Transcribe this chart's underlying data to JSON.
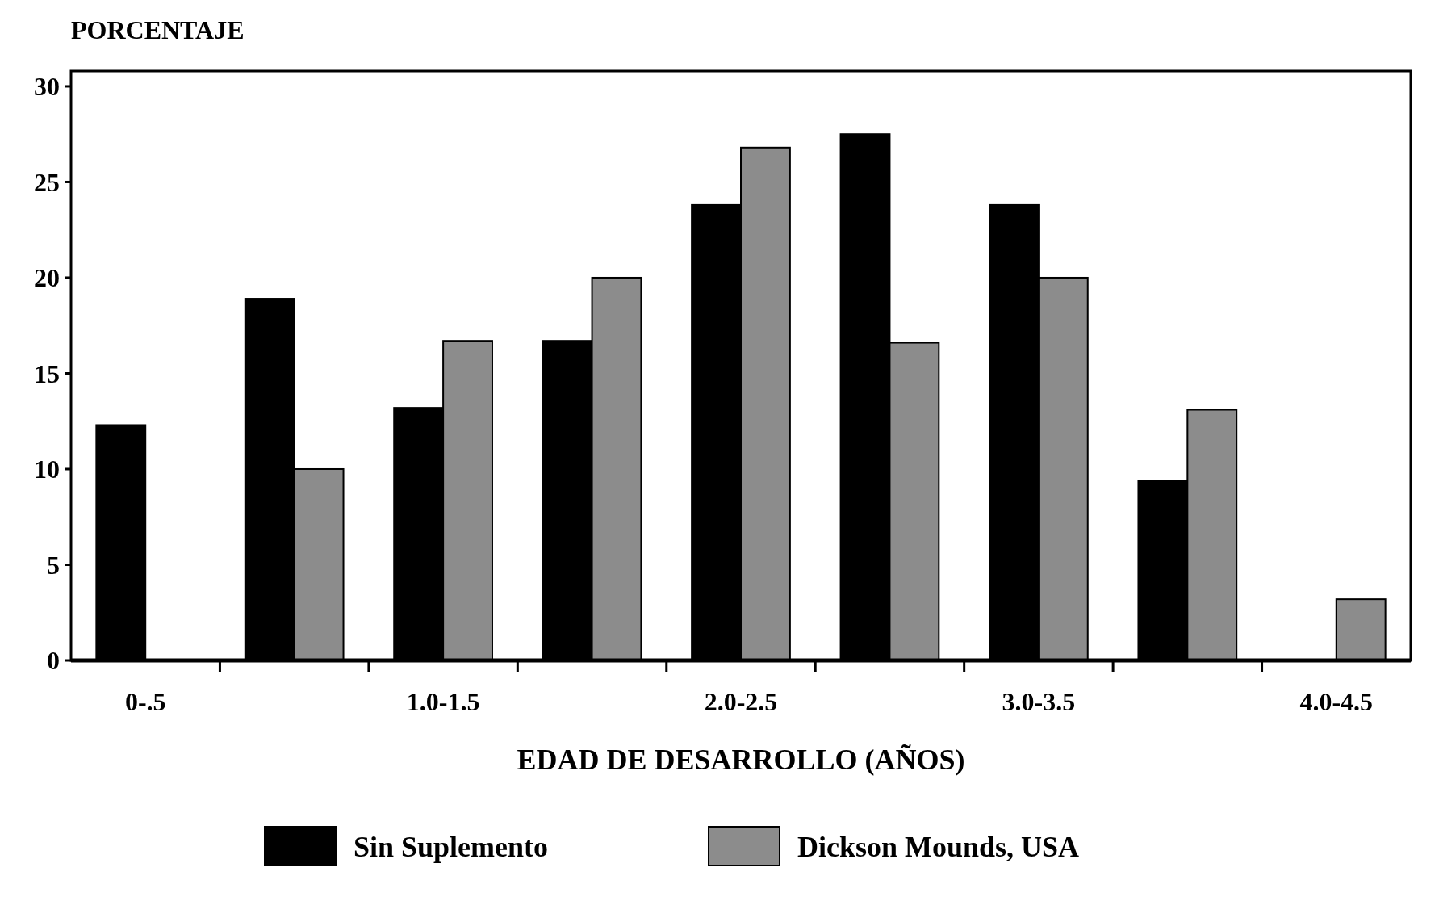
{
  "chart_data": {
    "type": "bar",
    "ylabel": "PORCENTAJE",
    "xlabel": "EDAD DE DESARROLLO (AÑOS)",
    "categories": [
      "0-.5",
      null,
      "1.0-1.5",
      null,
      "2.0-2.5",
      null,
      "3.0-3.5",
      null,
      "4.0-4.5"
    ],
    "series": [
      {
        "name": "Sin Suplemento",
        "color": "#000000",
        "values": [
          12.3,
          18.9,
          13.2,
          16.7,
          23.8,
          27.5,
          23.8,
          9.4,
          0
        ]
      },
      {
        "name": "Dickson Mounds, USA",
        "color": "#8c8c8c",
        "values": [
          0,
          10.0,
          16.7,
          20.0,
          26.8,
          16.6,
          20.0,
          13.1,
          3.2
        ]
      }
    ],
    "ylim": [
      0,
      30.8
    ],
    "yticks": [
      0,
      5,
      10,
      15,
      20,
      25,
      30
    ],
    "grid": false,
    "legend": "bottom"
  }
}
